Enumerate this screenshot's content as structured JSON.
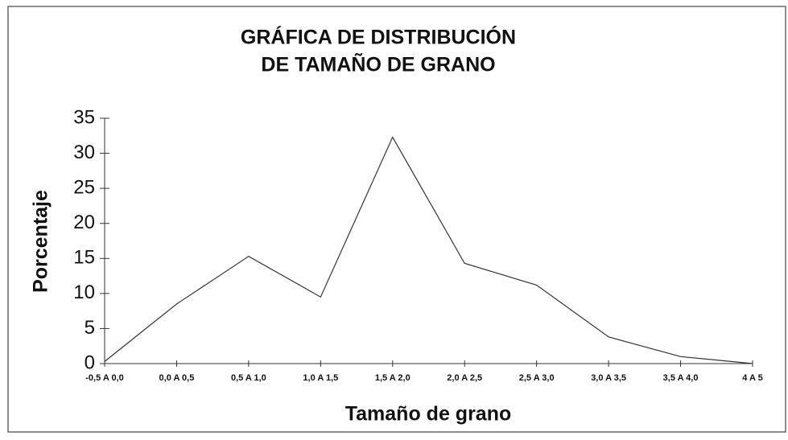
{
  "chart_data": {
    "type": "line",
    "title": [
      "GRÁFICA DE DISTRIBUCIÓN",
      "DE TAMAÑO DE GRANO"
    ],
    "x_label": "Tamaño de grano",
    "y_label": "Porcentaje",
    "categories": [
      "-0,5 A 0,0",
      "0,0 A 0,5",
      "0,5 A 1,0",
      "1,0 A 1,5",
      "1,5 A 2,0",
      "2,0 A 2,5",
      "2,5 A 3,0",
      "3,0 A 3,5",
      "3,5 A 4,0",
      "4 A 5"
    ],
    "values": [
      0.3,
      8.5,
      15.3,
      9.5,
      32.3,
      14.3,
      11.2,
      3.8,
      1.0,
      0
    ],
    "color": "#333333",
    "ylim": [
      0,
      35
    ],
    "yticks": [
      0,
      5,
      10,
      15,
      20,
      25,
      30,
      35
    ],
    "grid": false
  }
}
